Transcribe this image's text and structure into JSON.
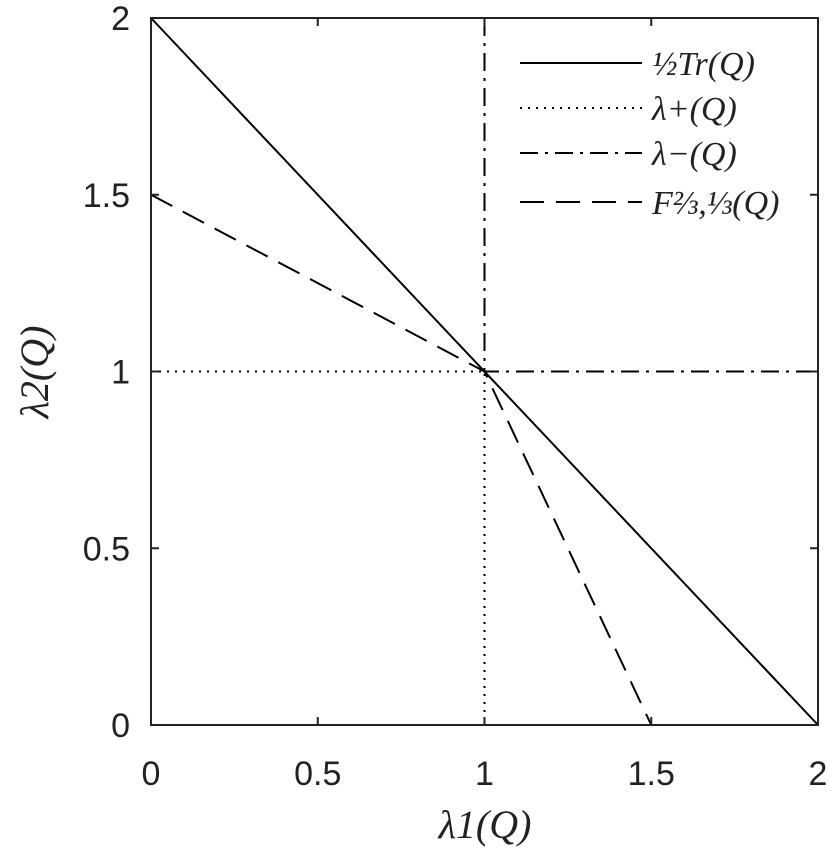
{
  "chart_data": {
    "type": "line",
    "title": "",
    "xlabel": "λ1(Q)",
    "ylabel": "λ2(Q)",
    "xlim": [
      0,
      2
    ],
    "ylim": [
      0,
      2
    ],
    "xticks": [
      0,
      0.5,
      1,
      1.5,
      2
    ],
    "yticks": [
      0,
      0.5,
      1,
      1.5,
      2
    ],
    "xtick_labels": [
      "0",
      "0.5",
      "1",
      "1.5",
      "2"
    ],
    "ytick_labels": [
      "0",
      "0.5",
      "1",
      "1.5",
      "2"
    ],
    "grid": false,
    "legend_position": "top-right",
    "series": [
      {
        "name": "½Tr(Q)",
        "style": "solid",
        "x": [
          0,
          2
        ],
        "y": [
          2,
          0
        ]
      },
      {
        "name": "λ+(Q)",
        "style": "dotted",
        "x": [
          0,
          1,
          1
        ],
        "y": [
          1,
          1,
          0
        ]
      },
      {
        "name": "λ−(Q)",
        "style": "dashdot",
        "x": [
          1,
          1,
          2
        ],
        "y": [
          2,
          1,
          1
        ]
      },
      {
        "name": "F⅔,⅓(Q)",
        "style": "dashed",
        "x": [
          0,
          1,
          1.5
        ],
        "y": [
          1.5,
          1,
          0
        ]
      }
    ],
    "line_color": "#000000"
  }
}
